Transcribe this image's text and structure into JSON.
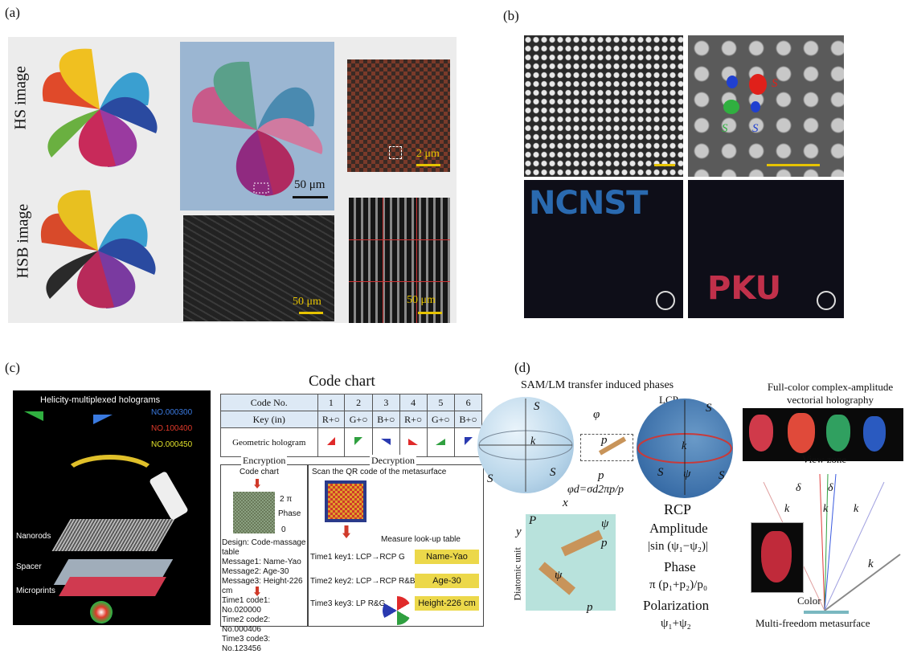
{
  "panel_a": {
    "label": "(a)",
    "row1": "HS image",
    "row2": "HSB image",
    "sb1": "50 μm",
    "sb2": "2 μm",
    "sb3": "50 μm",
    "sb4": "50 μm"
  },
  "panel_b": {
    "label": "(b)",
    "s_r": "S",
    "s_g": "S",
    "s_b": "S",
    "word1": "NCNST",
    "word2": "PKU"
  },
  "panel_c": {
    "label": "(c)",
    "holo_title": "Helicity-multiplexed holograms",
    "nos": [
      "NO.000300",
      "NO.100400",
      "NO.000450"
    ],
    "layers": [
      "Nanorods",
      "Spacer",
      "Microprints"
    ],
    "code_chart_title": "Code chart",
    "table": {
      "header": [
        "Code No.",
        "1",
        "2",
        "3",
        "4",
        "5",
        "6"
      ],
      "key_label": "Key (in)",
      "keys": [
        "R+○",
        "G+○",
        "B+○",
        "R+○",
        "G+○",
        "B+○"
      ],
      "geo_label": "Geometric hologram"
    },
    "encryption": "Encryption",
    "decryption": "Decryption",
    "code_chart_small": "Code chart",
    "scan_text": "Scan the QR code of the metasurface",
    "phase_top": "2 π",
    "phase_mid": "Phase",
    "phase_bot": "0",
    "design_lines": [
      "Design: Code-massage table",
      "Message1: Name-Yao",
      "Message2: Age-30",
      "Message3: Height-226 cm",
      "..."
    ],
    "time_lines": [
      "Time1 code1: No.020000",
      "Time2 code2: No.000406",
      "Time3 code3: No.123456",
      "..."
    ],
    "lookup": "Measure look-up table",
    "keys_time": [
      "Time1 key1: LCP→RCP G",
      "Time2 key2: LCP→RCP R&B",
      "Time3 key3: LP R&G&B"
    ],
    "lookup_vals": [
      "Name-Yao",
      "Age-30",
      "Height-226 cm"
    ]
  },
  "panel_d": {
    "label": "(d)",
    "sam_title": "SAM/LM transfer induced phases",
    "lcp": "LCP",
    "s3": "S",
    "s1": "S",
    "s2": "S",
    "kx0": "k",
    "kxod": "k",
    "eq1": "φ",
    "eq2": "φd=σd2πp/p",
    "p_label": "p",
    "p0_label": "p",
    "psi": "ψ",
    "rcp": "RCP",
    "amplitude": "Amplitude",
    "amp_eq": "|sin (ψ₁−ψ₂)|",
    "phase": "Phase",
    "phase_eq": "π (p₁+p₂)/p₀",
    "polarization": "Polarization",
    "pol_eq": "ψ₁+ψ₂",
    "diatomic": "Diatomic unit",
    "x": "x",
    "y": "y",
    "P0": "P",
    "psi1": "ψ",
    "psi2": "ψ",
    "p1": "p",
    "p2": "p",
    "fullcolor_title1": "Full-color complex-amplitude",
    "fullcolor_title2": "vectorial holography",
    "view_zone": "View zone",
    "k_labels": [
      "k",
      "k",
      "k",
      "k"
    ],
    "delta_theta": "δ",
    "delta_r": "δ",
    "color": "Color",
    "metasurface": "Multi-freedom metasurface"
  }
}
